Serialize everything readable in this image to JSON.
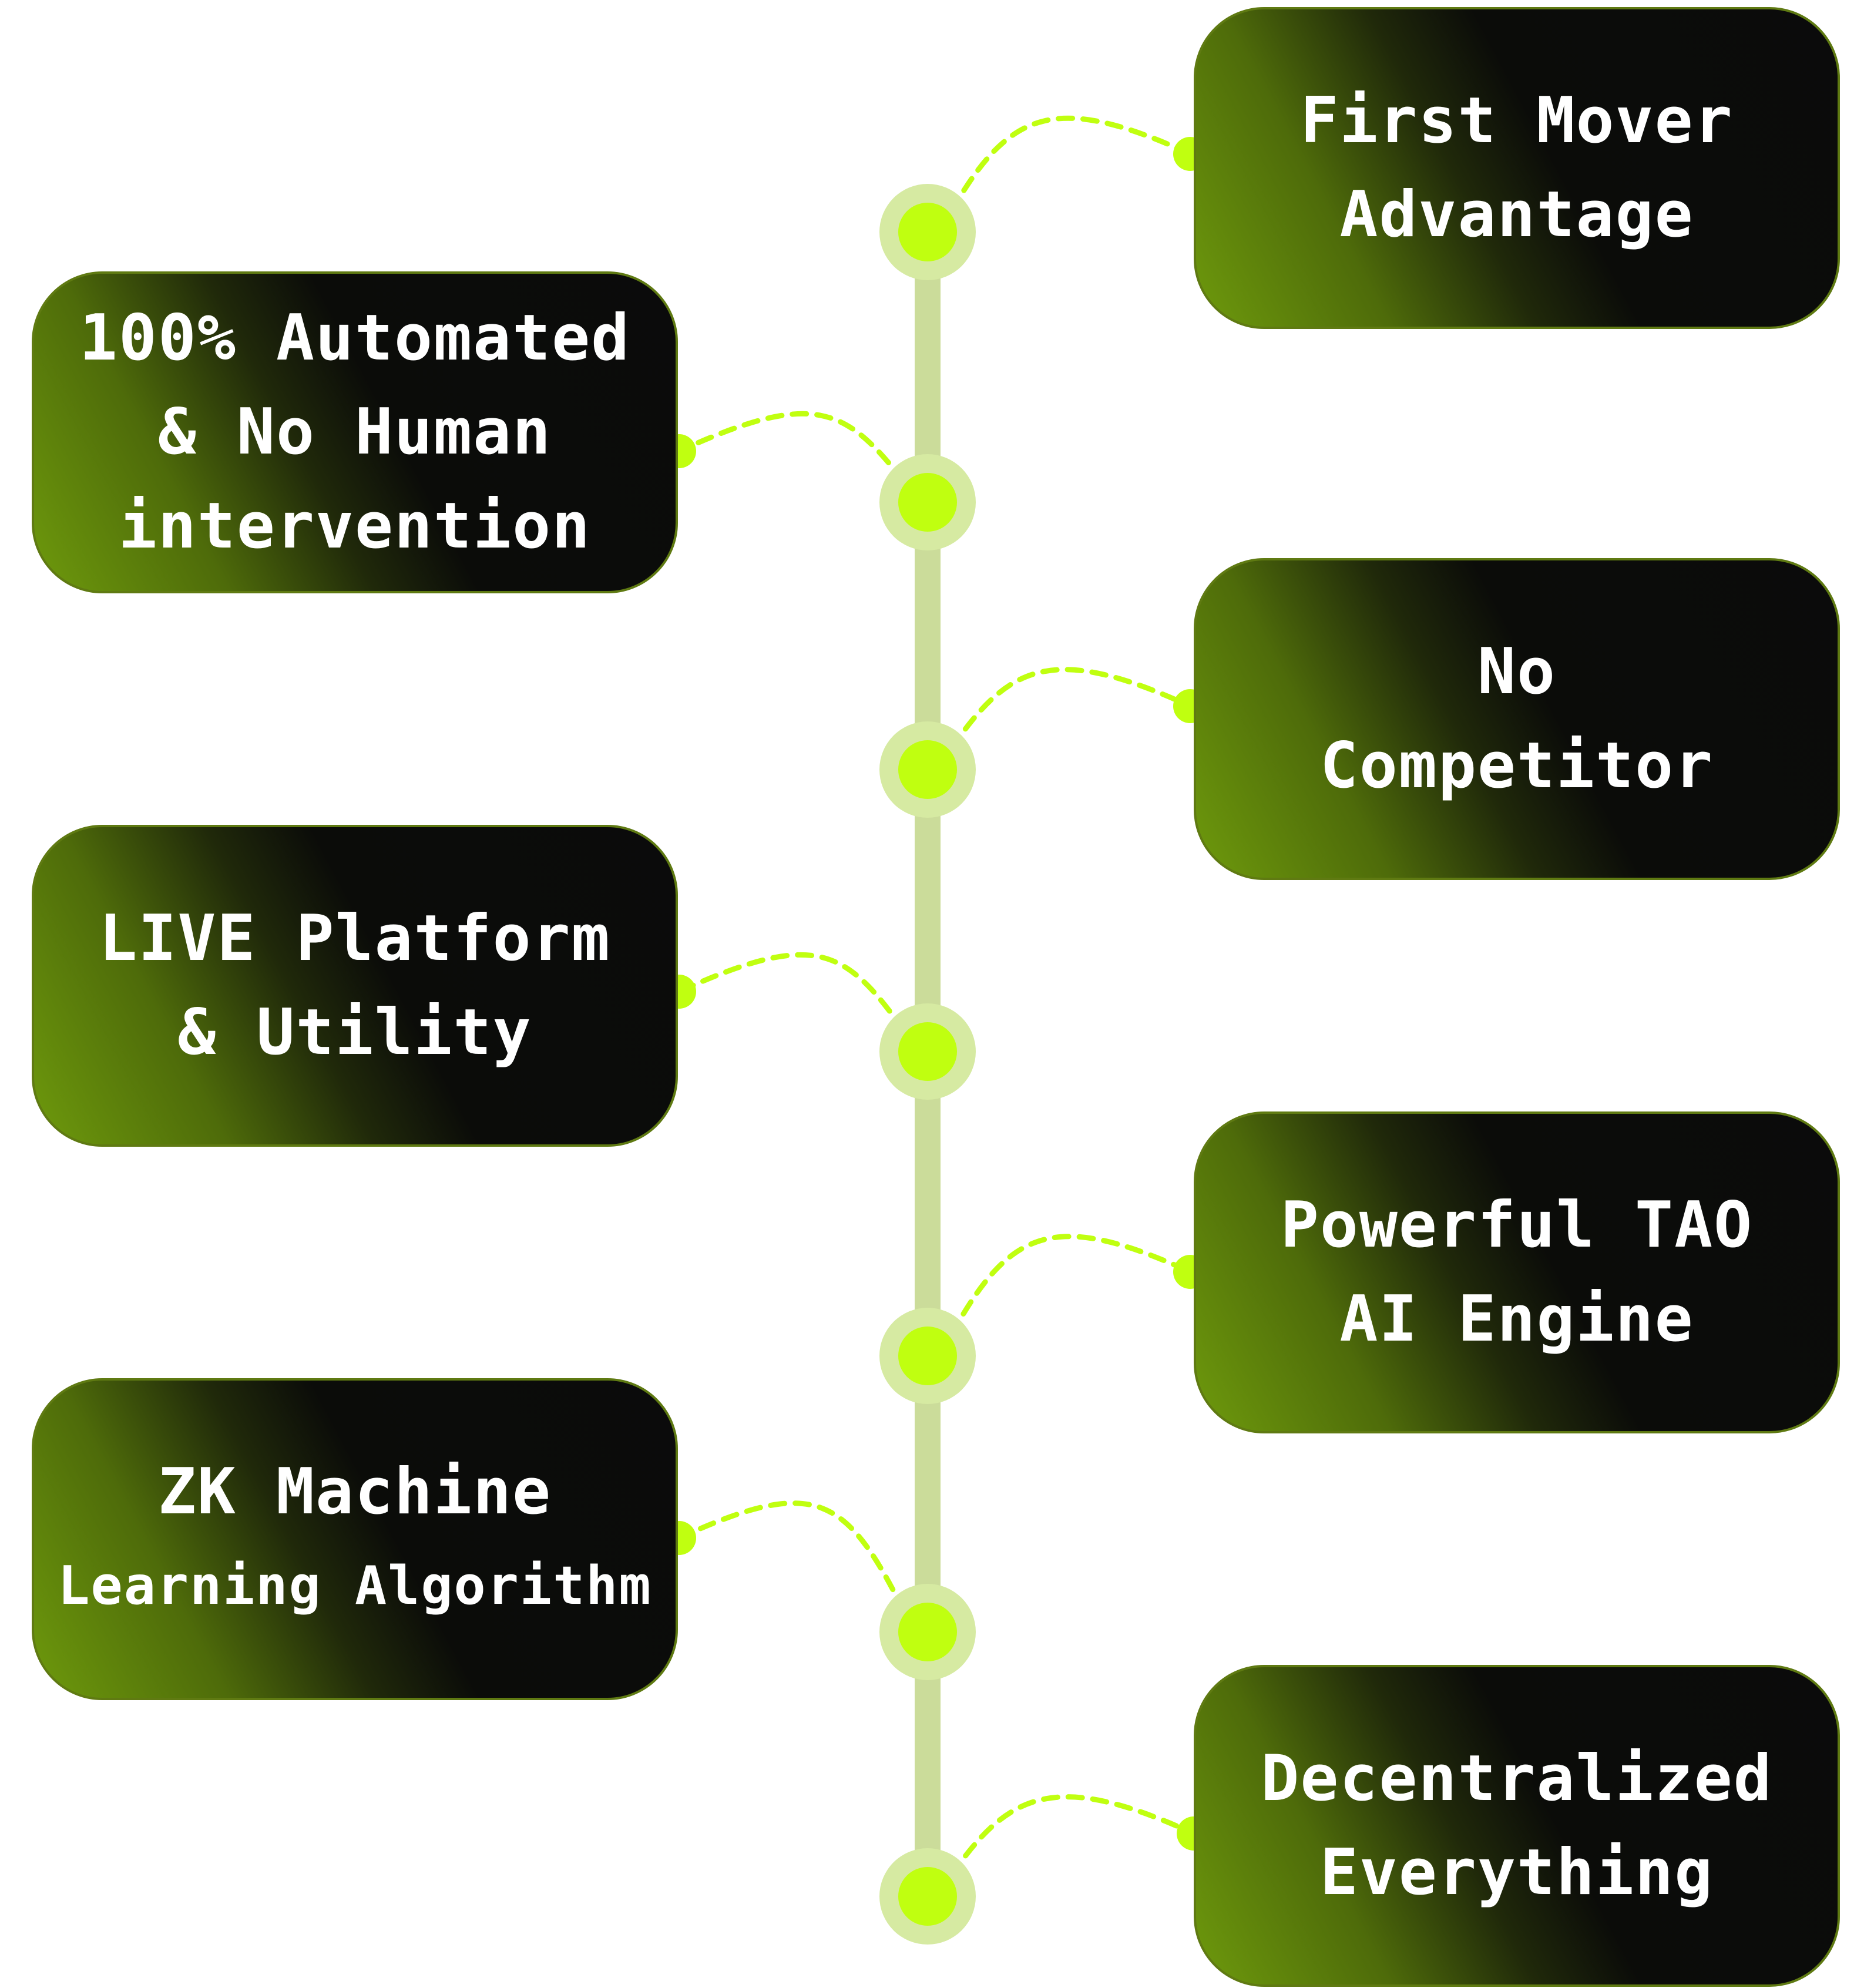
{
  "colors": {
    "accent": "#c0ff10",
    "timeline": "#cbdc9a",
    "node_halo": "#d6eaa2",
    "card_dark": "#0b0b0b",
    "card_green": "#6e9a0c",
    "text": "#ffffff"
  },
  "cards": [
    {
      "side": "right",
      "lines": [
        "First Mover",
        "Advantage"
      ]
    },
    {
      "side": "left",
      "lines": [
        "100% Automated",
        "& No Human",
        "intervention"
      ]
    },
    {
      "side": "right",
      "lines": [
        "No",
        "Competitor"
      ]
    },
    {
      "side": "left",
      "lines": [
        "LIVE Platform",
        "& Utility"
      ]
    },
    {
      "side": "right",
      "lines": [
        "Powerful TAO",
        "AI Engine"
      ]
    },
    {
      "side": "left",
      "lines": [
        "ZK Machine",
        "Learning Algorithm"
      ]
    },
    {
      "side": "right",
      "lines": [
        "Decentralized",
        "Everything"
      ]
    }
  ]
}
